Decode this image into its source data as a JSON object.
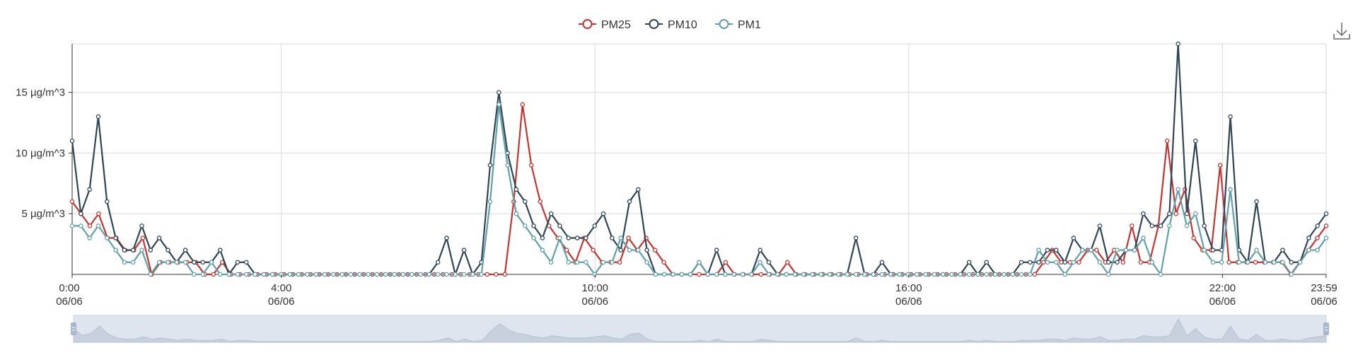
{
  "colors": {
    "pm25": "#c23531",
    "pm10": "#2f4554",
    "pm1": "#61a0a8",
    "grid": "#d9d9d9",
    "axis": "#333333",
    "zoom_fill": "#dfe5ef",
    "zoom_handle": "#a7b7cc"
  },
  "toolbar": {
    "download_icon": "download-icon"
  },
  "chart_data": {
    "type": "line",
    "title": "",
    "xlabel": "",
    "ylabel": "",
    "x_interval_minutes": 10,
    "x_range": [
      "0:00",
      "23:59"
    ],
    "ylim": [
      0,
      19
    ],
    "grid": true,
    "legend_position": "top-center",
    "x_ticks": [
      {
        "time": "0:00",
        "date": "06/06",
        "minutes": 0
      },
      {
        "time": "4:00",
        "date": "06/06",
        "minutes": 240
      },
      {
        "time": "10:00",
        "date": "06/06",
        "minutes": 600
      },
      {
        "time": "16:00",
        "date": "06/06",
        "minutes": 960
      },
      {
        "time": "22:00",
        "date": "06/06",
        "minutes": 1320
      },
      {
        "time": "23:59",
        "date": "06/06",
        "minutes": 1439
      }
    ],
    "y_ticks": [
      {
        "value": 5,
        "label": "5 µg/m^3"
      },
      {
        "value": 10,
        "label": "10 µg/m^3"
      },
      {
        "value": 15,
        "label": "15 µg/m^3"
      }
    ],
    "series": [
      {
        "name": "PM25",
        "color_key": "pm25",
        "values": [
          6,
          5,
          4,
          5,
          3,
          3,
          2,
          2,
          3,
          0,
          1,
          1,
          1,
          1,
          1,
          0,
          0,
          1,
          0,
          0,
          0,
          0,
          0,
          0,
          0,
          0,
          0,
          0,
          0,
          0,
          0,
          0,
          0,
          0,
          0,
          0,
          0,
          0,
          0,
          0,
          0,
          0,
          0,
          0,
          0,
          0,
          0,
          0,
          0,
          0,
          6,
          14,
          9,
          6,
          4,
          3,
          2,
          1,
          3,
          2,
          1,
          1,
          1,
          3,
          2,
          3,
          2,
          1,
          0,
          0,
          0,
          0,
          0,
          0,
          1,
          0,
          0,
          0,
          0,
          0,
          0,
          1,
          0,
          0,
          0,
          0,
          0,
          0,
          0,
          0,
          0,
          0,
          0,
          0,
          0,
          0,
          0,
          0,
          0,
          0,
          0,
          0,
          0,
          0,
          0,
          0,
          0,
          0,
          0,
          0,
          1,
          2,
          1,
          1,
          1,
          2,
          2,
          1,
          2,
          1,
          4,
          1,
          1,
          4,
          11,
          5,
          7,
          3,
          2,
          2,
          9,
          1,
          1,
          1,
          1,
          1,
          1,
          1,
          0,
          1,
          2,
          3,
          4
        ]
      },
      {
        "name": "PM10",
        "color_key": "pm10",
        "values": [
          11,
          5,
          7,
          13,
          6,
          3,
          2,
          2,
          4,
          2,
          3,
          2,
          1,
          2,
          1,
          1,
          1,
          2,
          0,
          1,
          1,
          0,
          0,
          0,
          0,
          0,
          0,
          0,
          0,
          0,
          0,
          0,
          0,
          0,
          0,
          0,
          0,
          0,
          0,
          0,
          0,
          0,
          1,
          3,
          0,
          2,
          0,
          1,
          9,
          15,
          10,
          7,
          6,
          4,
          3,
          5,
          4,
          3,
          3,
          3,
          4,
          5,
          3,
          2,
          6,
          7,
          2,
          0,
          0,
          0,
          0,
          0,
          1,
          0,
          2,
          0,
          0,
          0,
          0,
          2,
          1,
          0,
          0,
          0,
          0,
          0,
          0,
          0,
          0,
          0,
          3,
          0,
          0,
          1,
          0,
          0,
          0,
          0,
          0,
          0,
          0,
          0,
          0,
          1,
          0,
          1,
          0,
          0,
          0,
          1,
          1,
          1,
          2,
          2,
          1,
          3,
          2,
          2,
          4,
          1,
          1,
          2,
          2,
          5,
          4,
          4,
          5,
          19,
          5,
          11,
          4,
          2,
          2,
          13,
          2,
          1,
          6,
          1,
          1,
          2,
          1,
          1,
          3,
          4,
          5
        ]
      },
      {
        "name": "PM1",
        "color_key": "pm1",
        "values": [
          4,
          4,
          3,
          4,
          3,
          2,
          1,
          1,
          2,
          0,
          1,
          1,
          1,
          1,
          0,
          0,
          1,
          0,
          0,
          0,
          0,
          0,
          0,
          0,
          0,
          0,
          0,
          0,
          0,
          0,
          0,
          0,
          0,
          0,
          0,
          0,
          0,
          0,
          0,
          0,
          0,
          0,
          0,
          0,
          0,
          0,
          0,
          0,
          6,
          14,
          9,
          5,
          4,
          3,
          2,
          1,
          3,
          1,
          1,
          1,
          0,
          1,
          1,
          3,
          2,
          2,
          1,
          0,
          0,
          0,
          0,
          0,
          1,
          0,
          0,
          0,
          0,
          0,
          0,
          1,
          0,
          0,
          0,
          0,
          0,
          0,
          0,
          0,
          0,
          0,
          0,
          0,
          0,
          0,
          0,
          0,
          0,
          0,
          0,
          0,
          0,
          0,
          0,
          0,
          0,
          0,
          0,
          0,
          0,
          0,
          0,
          2,
          1,
          1,
          0,
          1,
          2,
          2,
          1,
          0,
          2,
          2,
          2,
          3,
          1,
          0,
          4,
          7,
          4,
          5,
          2,
          1,
          1,
          7,
          1,
          1,
          2,
          1,
          1,
          1,
          0,
          1,
          2,
          2,
          3
        ]
      }
    ]
  }
}
